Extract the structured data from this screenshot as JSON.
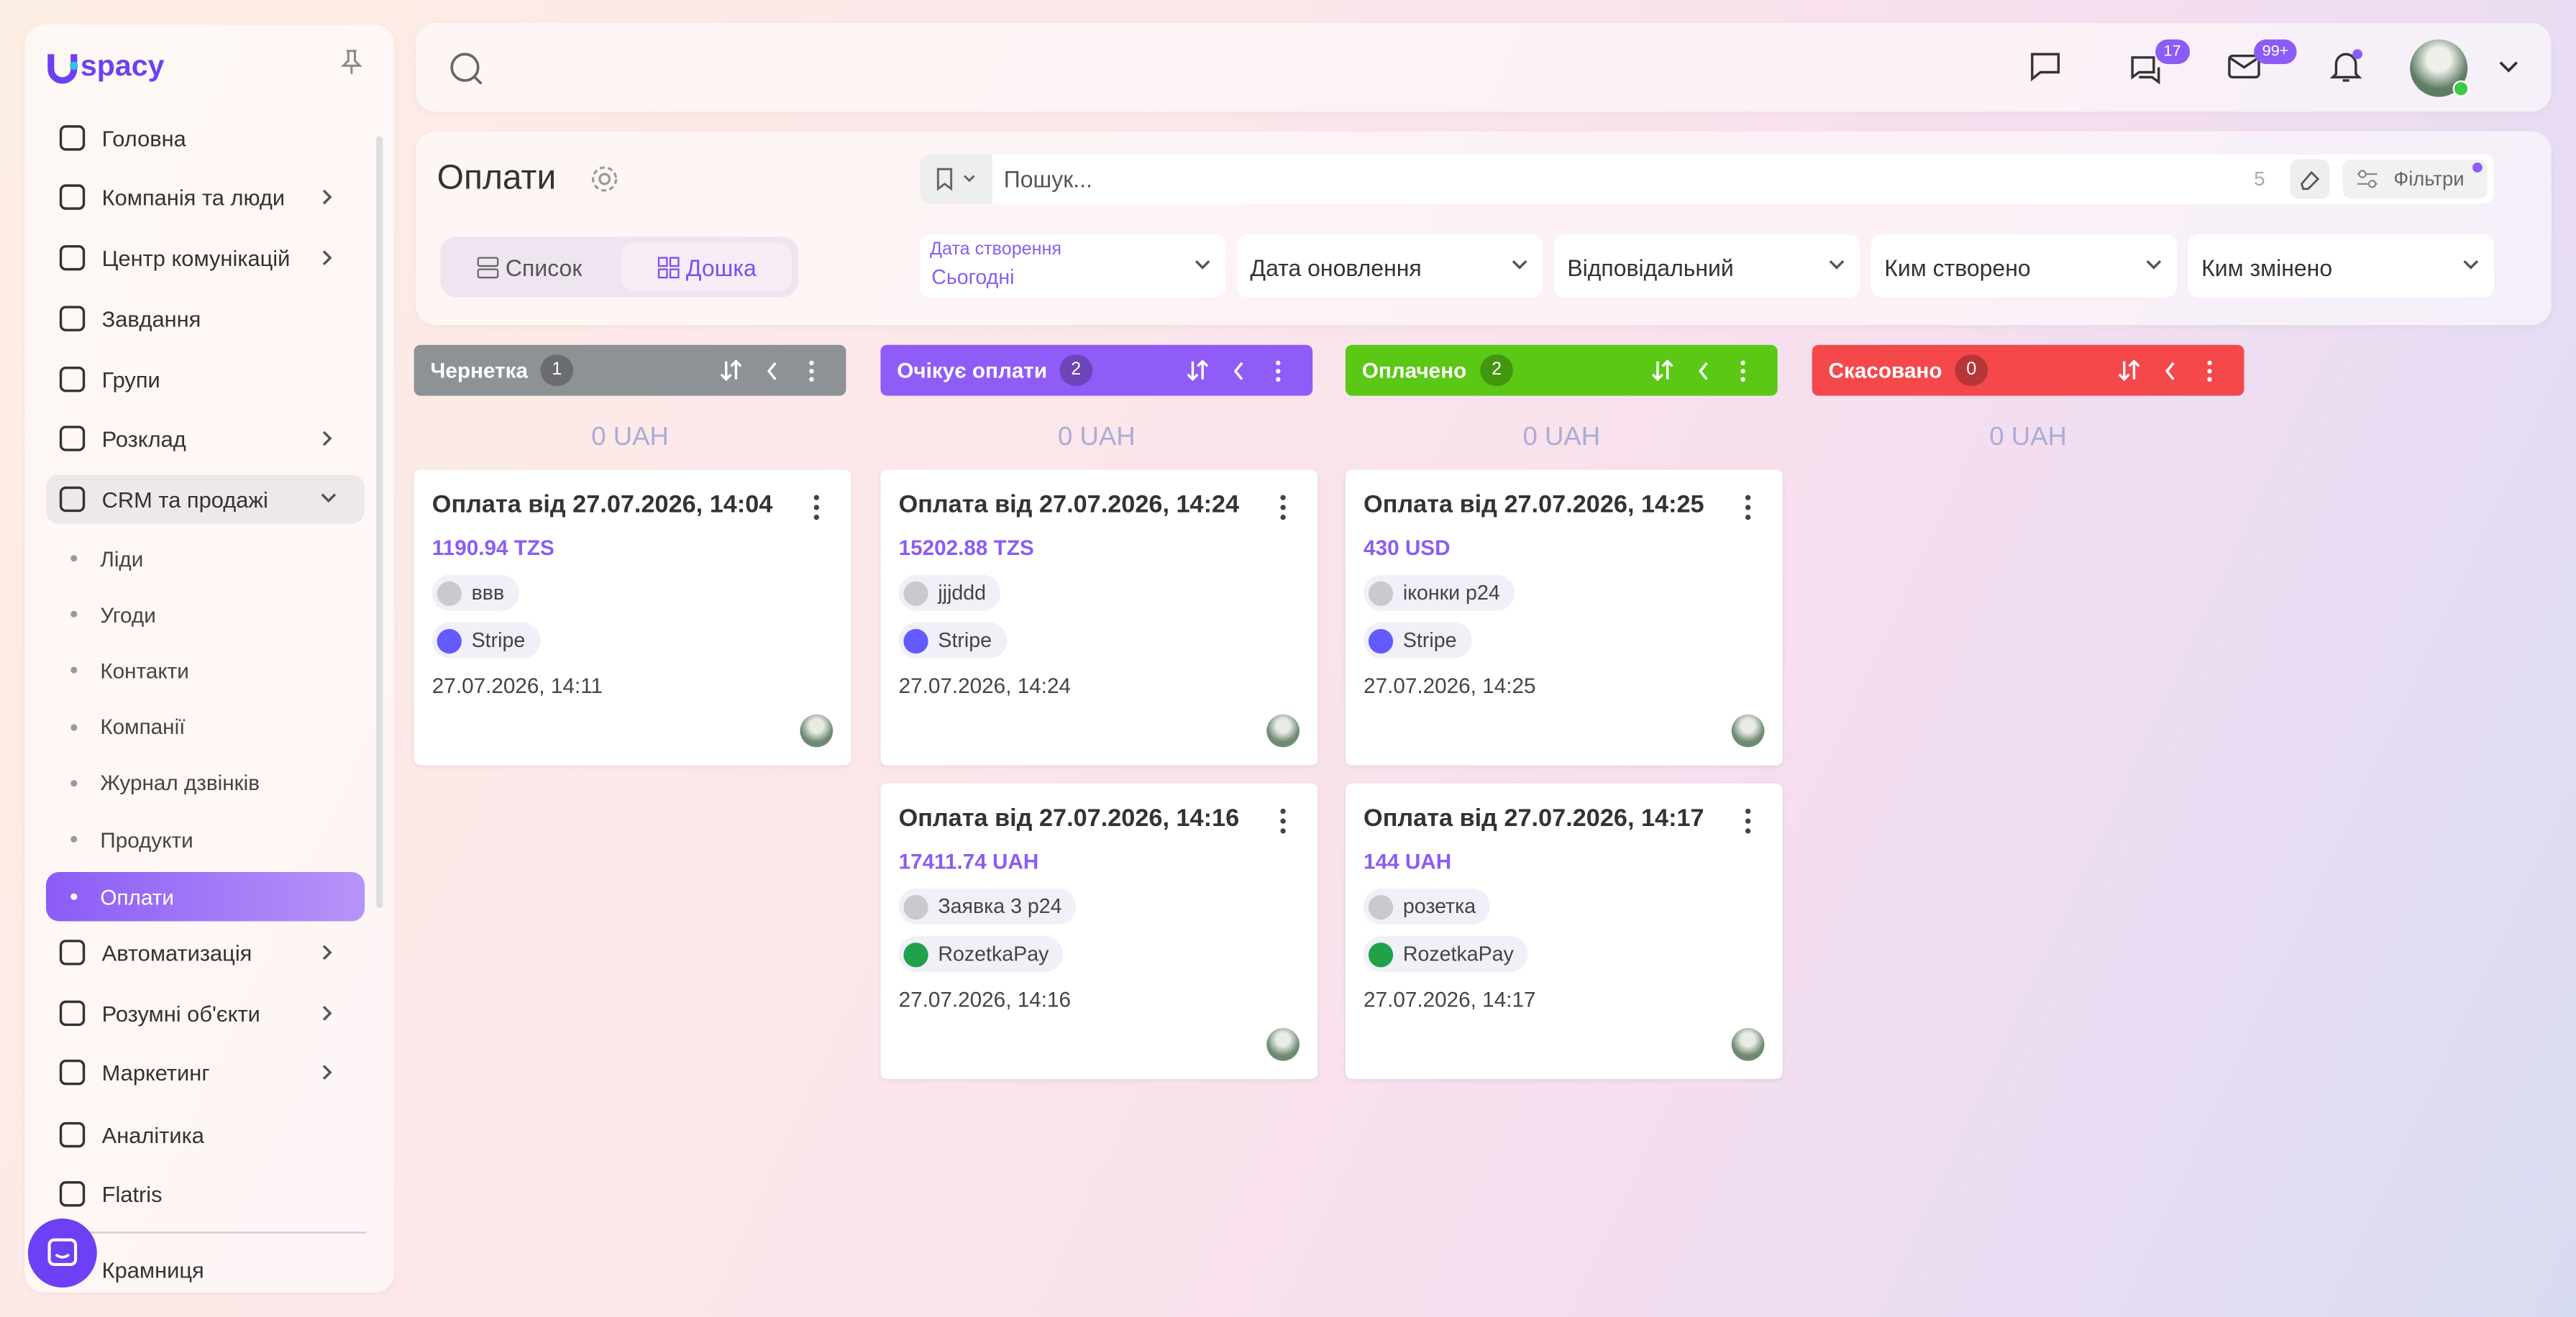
{
  "logo_text": "spacy",
  "topbar": {
    "chat_badge": "17",
    "mail_badge": "99+"
  },
  "sidebar": {
    "items": [
      "Головна",
      "Компанія та люди",
      "Центр комунікацій",
      "Завдання",
      "Групи",
      "Розклад",
      "CRM та продажі",
      "Автоматизація",
      "Розумні об'єкти",
      "Маркетинг",
      "Аналітика",
      "Flatris",
      "Крамниця"
    ],
    "crm_children": [
      "Ліди",
      "Угоди",
      "Контакти",
      "Компанії",
      "Журнал дзвінків",
      "Продукти",
      "Оплати"
    ]
  },
  "page": {
    "title": "Оплати",
    "views": [
      "Список",
      "Дошка"
    ],
    "search_placeholder": "Пошук...",
    "search_count": "5",
    "filters_button": "Фільтри",
    "filters": [
      {
        "label": "Дата створення",
        "value": "Сьогодні"
      },
      {
        "value": "Дата оновлення"
      },
      {
        "value": "Відповідальний"
      },
      {
        "value": "Ким створено"
      },
      {
        "value": "Ким змінено"
      }
    ]
  },
  "columns": [
    {
      "name": "Чернетка",
      "count": 1,
      "color": "#8e9196",
      "total": "0 UAH",
      "cards": [
        {
          "title": "Оплата від 27.07.2026, 14:04",
          "amount": "1190.94 TZS",
          "contact": "ввв",
          "provider": "Stripe",
          "provider_color": "#635bff",
          "date": "27.07.2026, 14:11"
        }
      ]
    },
    {
      "name": "Очікує оплати",
      "count": 2,
      "color": "#8f5cf7",
      "total": "0 UAH",
      "cards": [
        {
          "title": "Оплата від 27.07.2026, 14:24",
          "amount": "15202.88 TZS",
          "contact": "jjjddd",
          "provider": "Stripe",
          "provider_color": "#635bff",
          "date": "27.07.2026, 14:24"
        },
        {
          "title": "Оплата від 27.07.2026, 14:16",
          "amount": "17411.74 UAH",
          "contact": "Заявка 3 p24",
          "provider": "RozetkaPay",
          "provider_color": "#1fa24a",
          "date": "27.07.2026, 14:16"
        }
      ]
    },
    {
      "name": "Оплачено",
      "count": 2,
      "color": "#5ac814",
      "total": "0 UAH",
      "cards": [
        {
          "title": "Оплата від 27.07.2026, 14:25",
          "amount": "430 USD",
          "contact": "іконки p24",
          "provider": "Stripe",
          "provider_color": "#635bff",
          "date": "27.07.2026, 14:25"
        },
        {
          "title": "Оплата від 27.07.2026, 14:17",
          "amount": "144 UAH",
          "contact": "розетка",
          "provider": "RozetkaPay",
          "provider_color": "#1fa24a",
          "date": "27.07.2026, 14:17"
        }
      ]
    },
    {
      "name": "Скасовано",
      "count": 0,
      "color": "#f4484b",
      "total": "0 UAH",
      "cards": []
    }
  ]
}
